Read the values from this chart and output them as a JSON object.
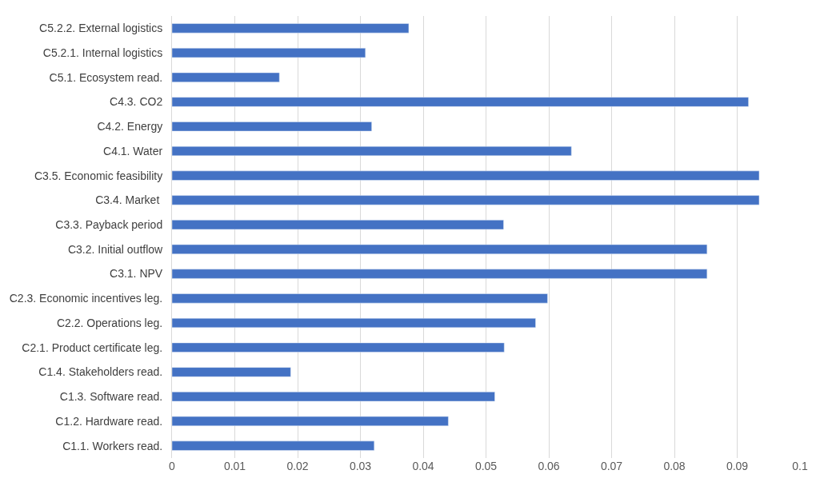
{
  "chart_data": {
    "type": "bar",
    "orientation": "horizontal",
    "categories": [
      "C5.2.2. External logistics",
      "C5.2.1. Internal logistics",
      "C5.1. Ecosystem read.",
      "C4.3. CO2",
      "C4.2. Energy",
      "C4.1. Water",
      "C3.5. Economic feasibility",
      "C3.4. Market ",
      "C3.3. Payback period",
      "C3.2. Initial outflow",
      "C3.1. NPV",
      "C2.3. Economic incentives leg.",
      "C2.2. Operations leg.",
      "C2.1. Product certificate leg.",
      "C1.4. Stakeholders read.",
      "C1.3. Software read.",
      "C1.2. Hardware read.",
      "C1.1. Workers read."
    ],
    "values": [
      0.0377,
      0.0308,
      0.0171,
      0.0918,
      0.0318,
      0.0636,
      0.0935,
      0.0935,
      0.0528,
      0.0852,
      0.0852,
      0.0598,
      0.0579,
      0.0529,
      0.0189,
      0.0514,
      0.044,
      0.0322
    ],
    "color": "#4472c4",
    "xlim": [
      0,
      0.1
    ],
    "xticks": [
      0,
      0.01,
      0.02,
      0.03,
      0.04,
      0.05,
      0.06,
      0.07,
      0.08,
      0.09,
      0.1
    ],
    "grid": "x"
  }
}
